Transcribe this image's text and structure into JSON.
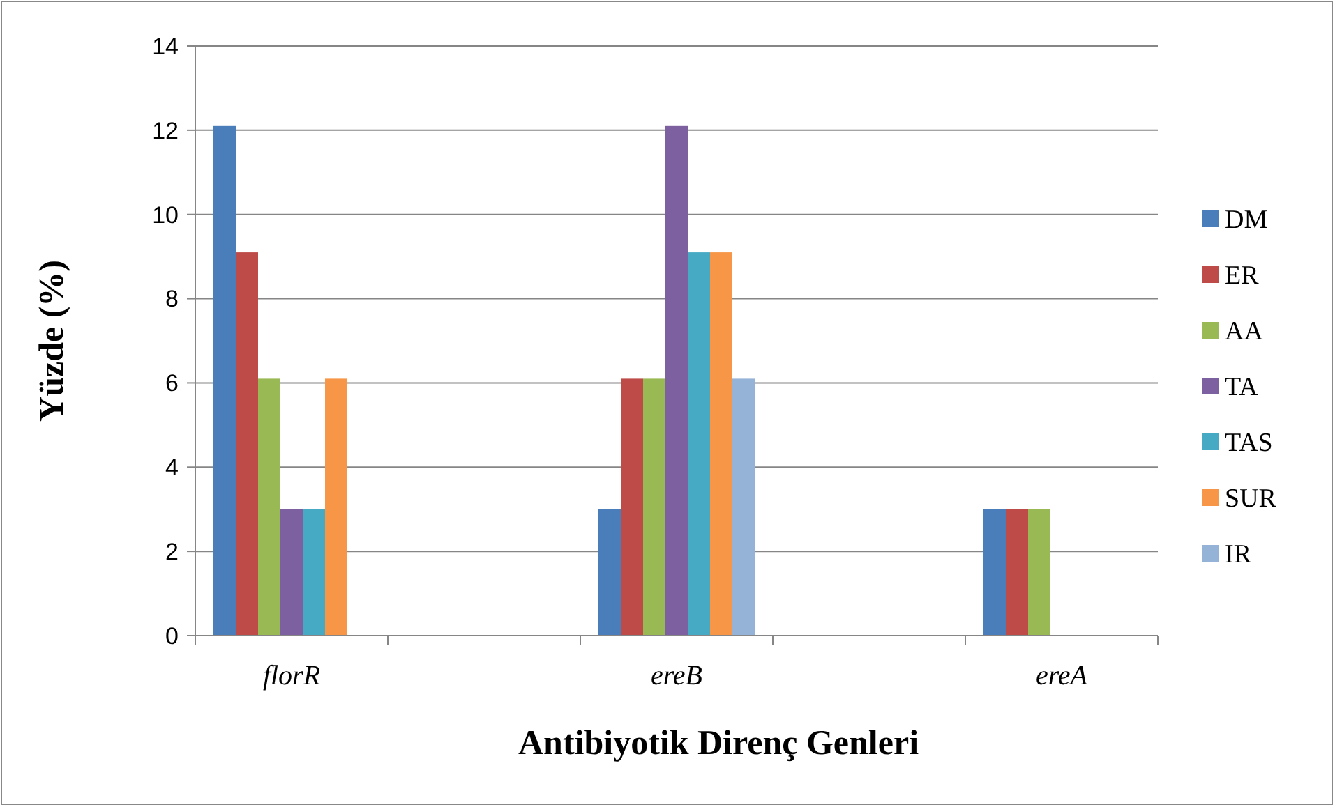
{
  "chart_data": {
    "type": "bar",
    "xlabel": "Antibiyotik Direnç Genleri",
    "ylabel": "Yüzde (%)",
    "categories": [
      "florR",
      null,
      "ereB",
      null,
      "ereA"
    ],
    "series": [
      {
        "name": "DM",
        "color": "#4a7ebb",
        "values": [
          12.1,
          null,
          3.0,
          null,
          3.0
        ]
      },
      {
        "name": "ER",
        "color": "#be4b48",
        "values": [
          9.1,
          null,
          6.1,
          null,
          3.0
        ]
      },
      {
        "name": "AA",
        "color": "#98b954",
        "values": [
          6.1,
          null,
          6.1,
          null,
          3.0
        ]
      },
      {
        "name": "TA",
        "color": "#7d60a0",
        "values": [
          3.0,
          null,
          12.1,
          null,
          null
        ]
      },
      {
        "name": "TAS",
        "color": "#46aac5",
        "values": [
          3.0,
          null,
          9.1,
          null,
          null
        ]
      },
      {
        "name": "SUR",
        "color": "#f79646",
        "values": [
          6.1,
          null,
          9.1,
          null,
          null
        ]
      },
      {
        "name": "IR",
        "color": "#95b3d7",
        "values": [
          null,
          null,
          6.1,
          null,
          null
        ]
      }
    ],
    "ylim": [
      0,
      14
    ],
    "yticks": [
      0,
      2,
      4,
      6,
      8,
      10,
      12,
      14
    ],
    "grid": "y",
    "legend": "right"
  }
}
